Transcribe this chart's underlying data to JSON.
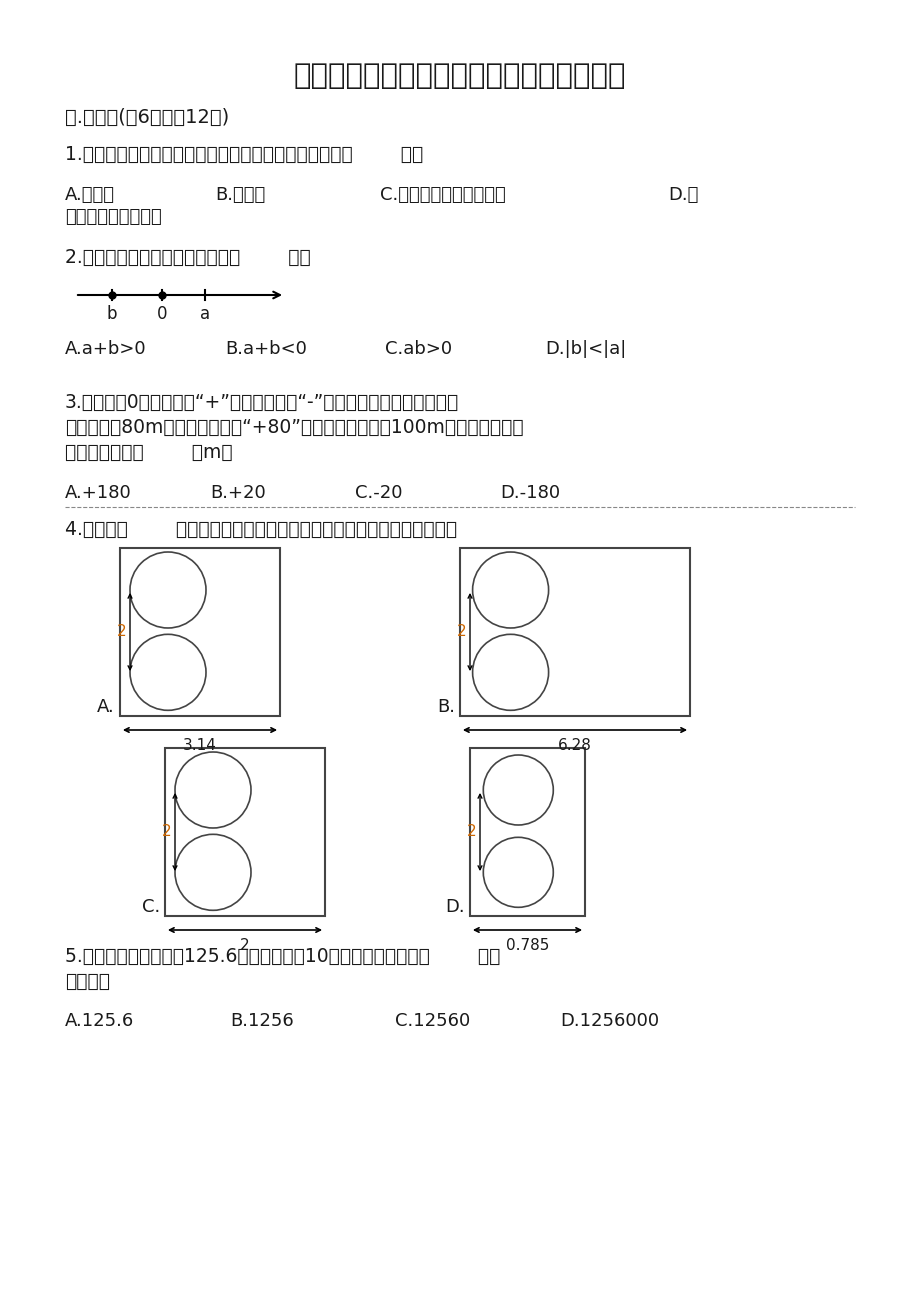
{
  "title": "冀教版数学六年级下册期末综合素养提升题",
  "section1": "一.选择题(兲6题，內12分)",
  "q1": "1.把一个圆柱切拼成一个近似的长方体，体积与表面积（        ）。",
  "q1_optA": "A.都变了",
  "q1_optB": "B.都没变",
  "q1_optC": "C.体积变了，表面积没变",
  "q1_optD1": "D.体",
  "q1_optD2": "积没变，表面积变了",
  "q2": "2.如图所示，下列判断正确的是（        ）。",
  "q2_optA": "A.a+b>0",
  "q2_optB": "B.a+b<0",
  "q2_optC": "C.ab>0",
  "q2_optD": "D.|b|<|a|",
  "q3_line1": "3.以公园为0点，向东用“+”表示，向西用“-”表示。快递员叔叔从公园出",
  "q3_line2": "发先向东行80m，他的位置记作“+80”；然后折回向西行100m，此时快递员叔",
  "q3_line3": "叔的位置记作（        ）m。",
  "q3_optA": "A.+180",
  "q3_optB": "B.+20",
  "q3_optC": "C.-20",
  "q3_optD": "D.-180",
  "q4": "4.下面图（        ）恰好可以围成圆柱体。（接头忽略不计，单位：厘米）",
  "q5_line1": "5.一个圆柱的侧面积是125.6平方米，高是10分米，它的体积是（        ）立",
  "q5_line2": "方分米。",
  "q5_optA": "A.125.6",
  "q5_optB": "B.1256",
  "q5_optC": "C.12560",
  "q5_optD": "D.1256000",
  "bg_color": "#ffffff",
  "text_color": "#1a1a1a",
  "dim_color": "#cc6600"
}
